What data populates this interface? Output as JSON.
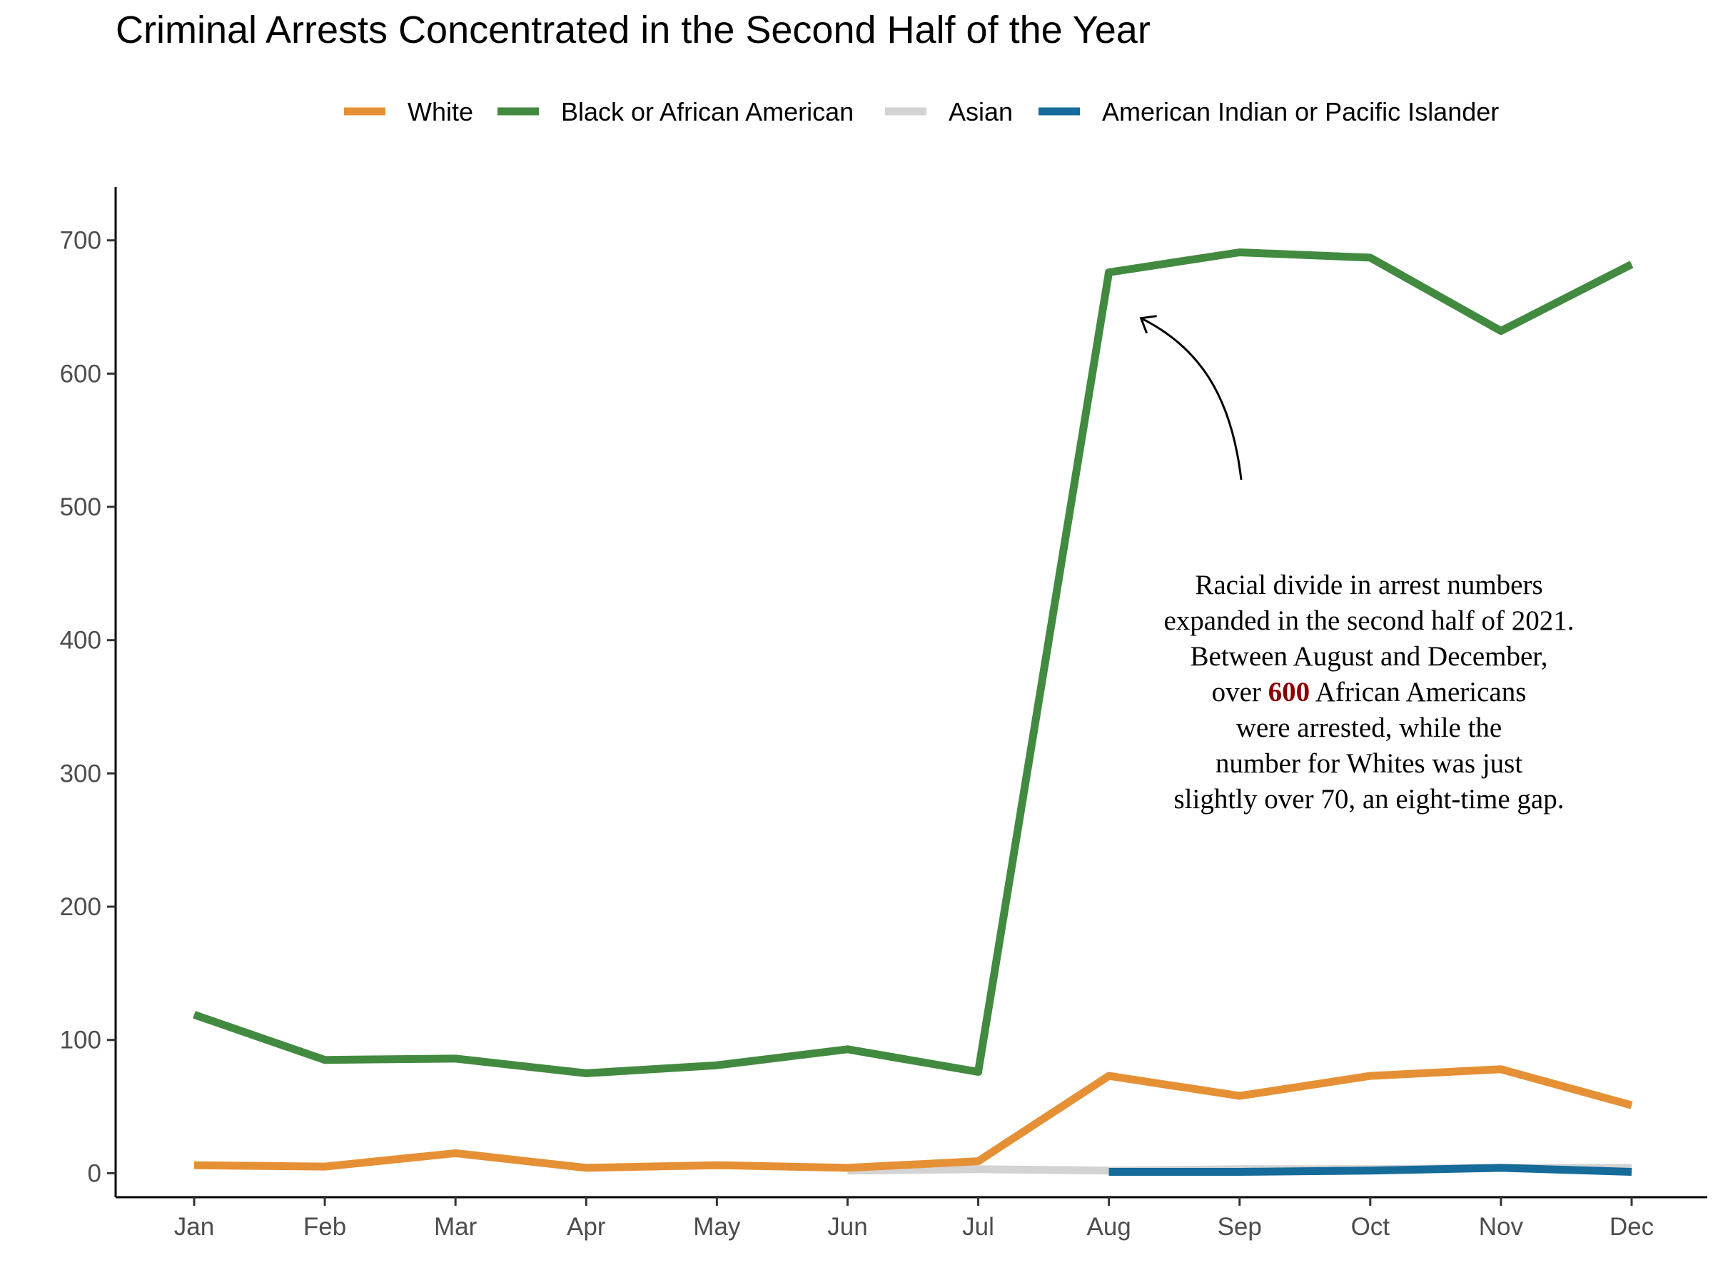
{
  "chart_data": {
    "type": "line",
    "title": "Criminal Arrests Concentrated in the Second Half of the Year",
    "xlabel": "",
    "ylabel": "",
    "categories": [
      "Jan",
      "Feb",
      "Mar",
      "Apr",
      "May",
      "Jun",
      "Jul",
      "Aug",
      "Sep",
      "Oct",
      "Nov",
      "Dec"
    ],
    "ylim": [
      -18,
      740
    ],
    "yticks": [
      "0",
      "100",
      "200",
      "300",
      "400",
      "500",
      "600",
      "700"
    ],
    "legend_position": "top",
    "grid": false,
    "series": [
      {
        "name": "White",
        "color": "#E69035",
        "values": [
          6,
          5,
          15,
          4,
          6,
          4,
          9,
          73,
          58,
          73,
          78,
          51
        ]
      },
      {
        "name": "Black or African American",
        "color": "#428A40",
        "values": [
          119,
          85,
          86,
          75,
          81,
          93,
          76,
          676,
          691,
          687,
          632,
          682
        ]
      },
      {
        "name": "Asian",
        "color": "#D3D3D3",
        "values": [
          null,
          null,
          null,
          null,
          null,
          2,
          3,
          2,
          3,
          3,
          4,
          4
        ]
      },
      {
        "name": "American Indian or Pacific Islander",
        "color": "#156B99",
        "values": [
          null,
          null,
          null,
          null,
          null,
          null,
          null,
          1,
          1,
          2,
          4,
          1
        ]
      }
    ],
    "annotation": {
      "lines": [
        [
          "Racial divide in arrest numbers"
        ],
        [
          "expanded in the second half of 2021."
        ],
        [
          "Between August and December,"
        ],
        [
          "over ",
          "600",
          " African Americans"
        ],
        [
          "were arrested, while the"
        ],
        [
          "number for Whites was just"
        ],
        [
          "slightly over 70, an eight-time gap."
        ]
      ],
      "highlight": "600",
      "highlight_color": "#8B0000",
      "arrow_target": {
        "category": "Aug",
        "value": 640
      }
    }
  }
}
